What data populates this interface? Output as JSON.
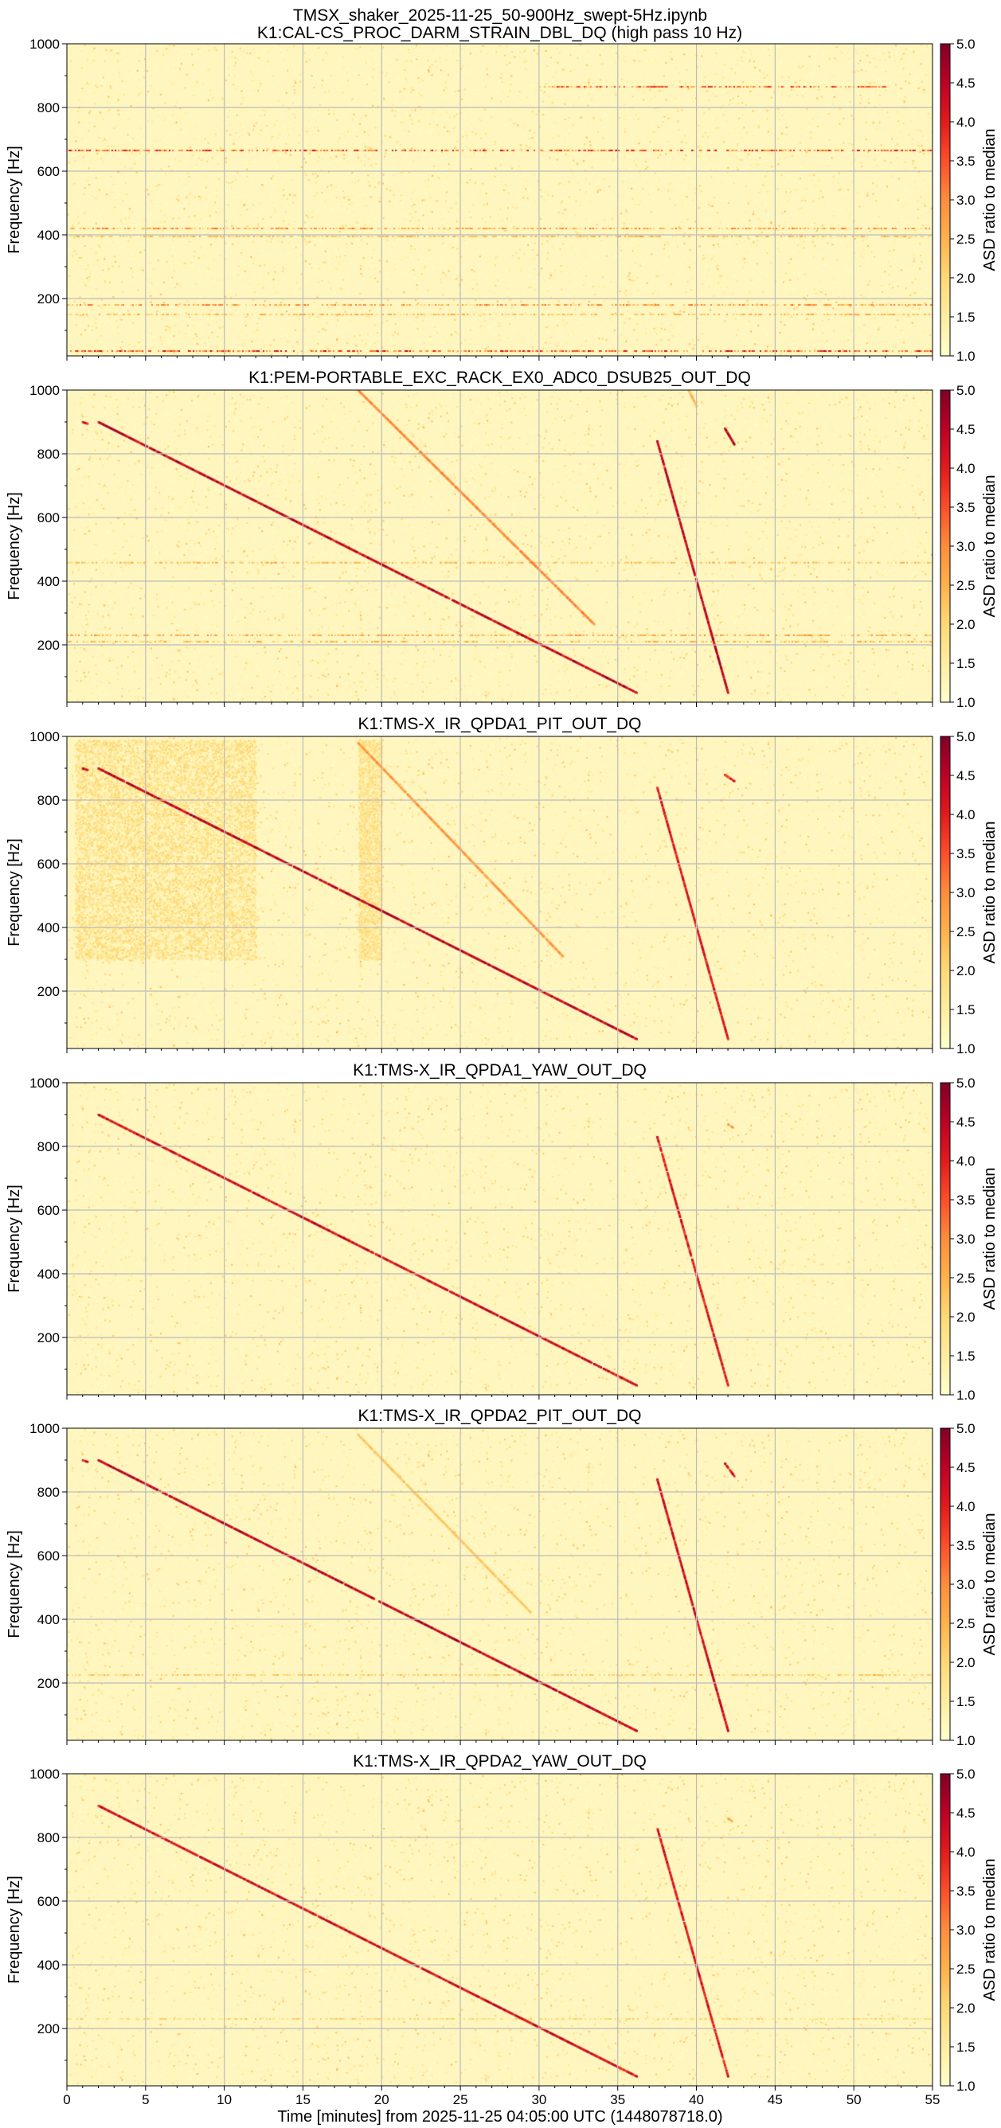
{
  "figure": {
    "suptitle": "TMSX_shaker_2025-11-25_50-900Hz_swept-5Hz.ipynb",
    "xlabel": "Time [minutes] from 2025-11-25 04:05:00 UTC (1448078718.0)",
    "ylabel": "Frequency [Hz]",
    "colorbar_label": "ASD ratio to median",
    "colormap": "YlOrRd",
    "colors": {
      "background_low": "#ffffcc",
      "mid": "#fd8d3c",
      "high": "#800026",
      "grid": "#bbbbbb"
    }
  },
  "chart_data": [
    {
      "type": "heatmap",
      "title": "K1:CAL-CS_PROC_DARM_STRAIN_DBL_DQ (high pass 10 Hz)",
      "xlim": [
        0,
        55
      ],
      "ylim": [
        20,
        1000
      ],
      "x_ticks": [
        0,
        5,
        10,
        15,
        20,
        25,
        30,
        35,
        40,
        45,
        50,
        55
      ],
      "y_ticks": [
        200,
        400,
        600,
        800,
        1000
      ],
      "clim": [
        1.0,
        5.0
      ],
      "colorbar_ticks": [
        1.0,
        1.5,
        2.0,
        2.5,
        3.0,
        3.5,
        4.0,
        4.5,
        5.0
      ],
      "grid": true,
      "sweep_lines": [],
      "horizontal_lines": [
        {
          "f": 865,
          "t_start": 30,
          "t_end": 52,
          "intensity": 0.6
        },
        {
          "f": 665,
          "t_start": 0,
          "t_end": 55,
          "intensity": 0.65
        },
        {
          "f": 420,
          "t_start": 0,
          "t_end": 55,
          "intensity": 0.45
        },
        {
          "f": 395,
          "t_start": 0,
          "t_end": 55,
          "intensity": 0.35
        },
        {
          "f": 180,
          "t_start": 0,
          "t_end": 55,
          "intensity": 0.45
        },
        {
          "f": 150,
          "t_start": 0,
          "t_end": 55,
          "intensity": 0.35
        },
        {
          "f": 35,
          "t_start": 0,
          "t_end": 55,
          "intensity": 0.7
        }
      ],
      "noise_blocks": []
    },
    {
      "type": "heatmap",
      "title": "K1:PEM-PORTABLE_EXC_RACK_EX0_ADC0_DSUB25_OUT_DQ",
      "xlim": [
        0,
        55
      ],
      "ylim": [
        20,
        1000
      ],
      "x_ticks": [
        0,
        5,
        10,
        15,
        20,
        25,
        30,
        35,
        40,
        45,
        50,
        55
      ],
      "y_ticks": [
        200,
        400,
        600,
        800,
        1000
      ],
      "clim": [
        1.0,
        5.0
      ],
      "colorbar_ticks": [
        1.0,
        1.5,
        2.0,
        2.5,
        3.0,
        3.5,
        4.0,
        4.5,
        5.0
      ],
      "grid": true,
      "sweep_lines": [
        {
          "t_start": 1.0,
          "f_start": 900,
          "t_end": 1.3,
          "f_end": 895,
          "intensity": 0.9
        },
        {
          "t_start": 2.0,
          "f_start": 900,
          "t_end": 36.2,
          "f_end": 50,
          "intensity": 0.95
        },
        {
          "t_start": 18.5,
          "f_start": 1000,
          "t_end": 33.5,
          "f_end": 265,
          "intensity": 0.55
        },
        {
          "t_start": 37.5,
          "f_start": 840,
          "t_end": 42.0,
          "f_end": 50,
          "intensity": 0.95
        },
        {
          "t_start": 39.5,
          "f_start": 1000,
          "t_end": 40.0,
          "f_end": 950,
          "intensity": 0.4
        },
        {
          "t_start": 41.8,
          "f_start": 880,
          "t_end": 42.4,
          "f_end": 830,
          "intensity": 0.95
        }
      ],
      "horizontal_lines": [
        {
          "f": 458,
          "t_start": 0,
          "t_end": 55,
          "intensity": 0.35
        },
        {
          "f": 230,
          "t_start": 0,
          "t_end": 55,
          "intensity": 0.4
        },
        {
          "f": 210,
          "t_start": 0,
          "t_end": 55,
          "intensity": 0.35
        }
      ],
      "noise_blocks": []
    },
    {
      "type": "heatmap",
      "title": "K1:TMS-X_IR_QPDA1_PIT_OUT_DQ",
      "xlim": [
        0,
        55
      ],
      "ylim": [
        20,
        1000
      ],
      "x_ticks": [
        0,
        5,
        10,
        15,
        20,
        25,
        30,
        35,
        40,
        45,
        50,
        55
      ],
      "y_ticks": [
        200,
        400,
        600,
        800,
        1000
      ],
      "clim": [
        1.0,
        5.0
      ],
      "colorbar_ticks": [
        1.0,
        1.5,
        2.0,
        2.5,
        3.0,
        3.5,
        4.0,
        4.5,
        5.0
      ],
      "grid": true,
      "sweep_lines": [
        {
          "t_start": 1.0,
          "f_start": 900,
          "t_end": 1.3,
          "f_end": 895,
          "intensity": 0.9
        },
        {
          "t_start": 2.0,
          "f_start": 900,
          "t_end": 36.2,
          "f_end": 50,
          "intensity": 0.95
        },
        {
          "t_start": 18.5,
          "f_start": 980,
          "t_end": 31.5,
          "f_end": 310,
          "intensity": 0.5
        },
        {
          "t_start": 37.5,
          "f_start": 840,
          "t_end": 42.0,
          "f_end": 50,
          "intensity": 0.85
        },
        {
          "t_start": 41.8,
          "f_start": 880,
          "t_end": 42.4,
          "f_end": 860,
          "intensity": 0.8
        }
      ],
      "horizontal_lines": [],
      "noise_blocks": [
        {
          "t_start": 0.5,
          "t_end": 12.0,
          "f_low": 300,
          "f_high": 990,
          "intensity": 0.22
        },
        {
          "t_start": 18.5,
          "t_end": 20.0,
          "f_low": 300,
          "f_high": 990,
          "intensity": 0.22
        }
      ]
    },
    {
      "type": "heatmap",
      "title": "K1:TMS-X_IR_QPDA1_YAW_OUT_DQ",
      "xlim": [
        0,
        55
      ],
      "ylim": [
        20,
        1000
      ],
      "x_ticks": [
        0,
        5,
        10,
        15,
        20,
        25,
        30,
        35,
        40,
        45,
        50,
        55
      ],
      "y_ticks": [
        200,
        400,
        600,
        800,
        1000
      ],
      "clim": [
        1.0,
        5.0
      ],
      "colorbar_ticks": [
        1.0,
        1.5,
        2.0,
        2.5,
        3.0,
        3.5,
        4.0,
        4.5,
        5.0
      ],
      "grid": true,
      "sweep_lines": [
        {
          "t_start": 2.0,
          "f_start": 900,
          "t_end": 36.2,
          "f_end": 50,
          "intensity": 0.9
        },
        {
          "t_start": 37.5,
          "f_start": 830,
          "t_end": 42.0,
          "f_end": 50,
          "intensity": 0.85
        },
        {
          "t_start": 42.0,
          "f_start": 870,
          "t_end": 42.3,
          "f_end": 860,
          "intensity": 0.5
        }
      ],
      "horizontal_lines": [],
      "noise_blocks": []
    },
    {
      "type": "heatmap",
      "title": "K1:TMS-X_IR_QPDA2_PIT_OUT_DQ",
      "xlim": [
        0,
        55
      ],
      "ylim": [
        20,
        1000
      ],
      "x_ticks": [
        0,
        5,
        10,
        15,
        20,
        25,
        30,
        35,
        40,
        45,
        50,
        55
      ],
      "y_ticks": [
        200,
        400,
        600,
        800,
        1000
      ],
      "clim": [
        1.0,
        5.0
      ],
      "colorbar_ticks": [
        1.0,
        1.5,
        2.0,
        2.5,
        3.0,
        3.5,
        4.0,
        4.5,
        5.0
      ],
      "grid": true,
      "sweep_lines": [
        {
          "t_start": 1.0,
          "f_start": 900,
          "t_end": 1.3,
          "f_end": 895,
          "intensity": 0.9
        },
        {
          "t_start": 2.0,
          "f_start": 900,
          "t_end": 36.2,
          "f_end": 50,
          "intensity": 0.95
        },
        {
          "t_start": 18.5,
          "f_start": 980,
          "t_end": 29.5,
          "f_end": 420,
          "intensity": 0.35
        },
        {
          "t_start": 37.5,
          "f_start": 840,
          "t_end": 42.0,
          "f_end": 50,
          "intensity": 0.9
        },
        {
          "t_start": 41.8,
          "f_start": 890,
          "t_end": 42.4,
          "f_end": 850,
          "intensity": 0.9
        }
      ],
      "horizontal_lines": [
        {
          "f": 225,
          "t_start": 0,
          "t_end": 55,
          "intensity": 0.3
        }
      ],
      "noise_blocks": []
    },
    {
      "type": "heatmap",
      "title": "K1:TMS-X_IR_QPDA2_YAW_OUT_DQ",
      "xlim": [
        0,
        55
      ],
      "ylim": [
        20,
        1000
      ],
      "x_ticks": [
        0,
        5,
        10,
        15,
        20,
        25,
        30,
        35,
        40,
        45,
        50,
        55
      ],
      "y_ticks": [
        200,
        400,
        600,
        800,
        1000
      ],
      "clim": [
        1.0,
        5.0
      ],
      "colorbar_ticks": [
        1.0,
        1.5,
        2.0,
        2.5,
        3.0,
        3.5,
        4.0,
        4.5,
        5.0
      ],
      "grid": true,
      "sweep_lines": [
        {
          "t_start": 2.0,
          "f_start": 900,
          "t_end": 36.2,
          "f_end": 50,
          "intensity": 0.9
        },
        {
          "t_start": 37.5,
          "f_start": 830,
          "t_end": 42.0,
          "f_end": 50,
          "intensity": 0.85
        },
        {
          "t_start": 42.0,
          "f_start": 860,
          "t_end": 42.3,
          "f_end": 850,
          "intensity": 0.5
        }
      ],
      "horizontal_lines": [
        {
          "f": 230,
          "t_start": 0,
          "t_end": 55,
          "intensity": 0.25
        }
      ],
      "noise_blocks": []
    }
  ]
}
